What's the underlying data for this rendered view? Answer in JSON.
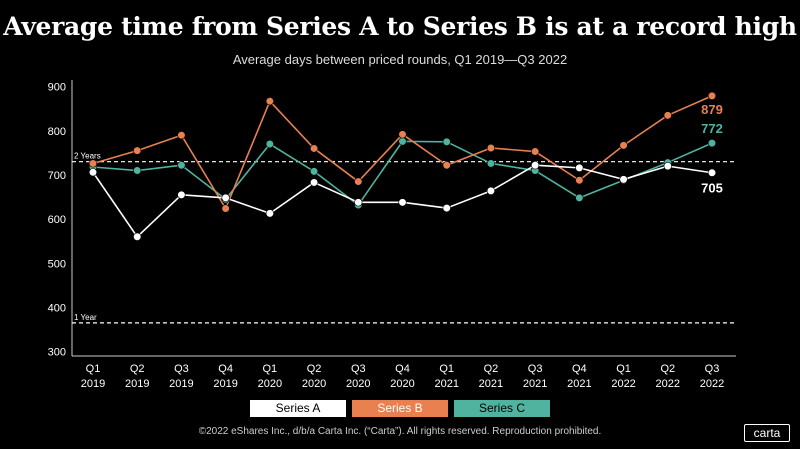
{
  "title": "Average time from Series A to Series B is at a record high",
  "subtitle": "Average days between priced rounds, Q1 2019—Q3 2022",
  "footer": "©2022 eShares Inc., d/b/a Carta Inc. (“Carta”). All rights reserved. Reproduction prohibited.",
  "logo": "carta",
  "colors": {
    "background": "#000000",
    "series_a": "#ffffff",
    "series_b": "#e8804f",
    "series_c": "#4fb3a0"
  },
  "chart_data": {
    "type": "line",
    "title": "Average time from Series A to Series B is at a record high",
    "subtitle": "Average days between priced rounds, Q1 2019—Q3 2022",
    "xlabel": "",
    "ylabel": "",
    "ylim": [
      290,
      915
    ],
    "yticks": [
      300,
      400,
      500,
      600,
      700,
      800,
      900
    ],
    "grid": false,
    "legend_position": "bottom",
    "categories": [
      [
        "Q1",
        "2019"
      ],
      [
        "Q2",
        "2019"
      ],
      [
        "Q3",
        "2019"
      ],
      [
        "Q4",
        "2019"
      ],
      [
        "Q1",
        "2020"
      ],
      [
        "Q2",
        "2020"
      ],
      [
        "Q3",
        "2020"
      ],
      [
        "Q4",
        "2020"
      ],
      [
        "Q1",
        "2021"
      ],
      [
        "Q2",
        "2021"
      ],
      [
        "Q3",
        "2021"
      ],
      [
        "Q4",
        "2021"
      ],
      [
        "Q1",
        "2022"
      ],
      [
        "Q2",
        "2022"
      ],
      [
        "Q3",
        "2022"
      ]
    ],
    "series": [
      {
        "name": "Series A",
        "color": "#ffffff",
        "values": [
          706,
          560,
          655,
          648,
          613,
          683,
          638,
          638,
          625,
          664,
          722,
          716,
          690,
          720,
          705
        ]
      },
      {
        "name": "Series B",
        "color": "#e8804f",
        "values": [
          726,
          755,
          790,
          624,
          867,
          760,
          685,
          792,
          722,
          761,
          753,
          688,
          767,
          835,
          879
        ]
      },
      {
        "name": "Series C",
        "color": "#4fb3a0",
        "values": [
          718,
          710,
          722,
          645,
          770,
          708,
          632,
          776,
          775,
          726,
          710,
          648,
          688,
          728,
          772
        ]
      }
    ],
    "end_labels": [
      {
        "series": "Series B",
        "text": "879"
      },
      {
        "series": "Series C",
        "text": "772"
      },
      {
        "series": "Series A",
        "text": "705"
      }
    ],
    "reference_lines": [
      {
        "value": 730,
        "label": "2 Years"
      },
      {
        "value": 365,
        "label": "1 Year"
      }
    ]
  }
}
